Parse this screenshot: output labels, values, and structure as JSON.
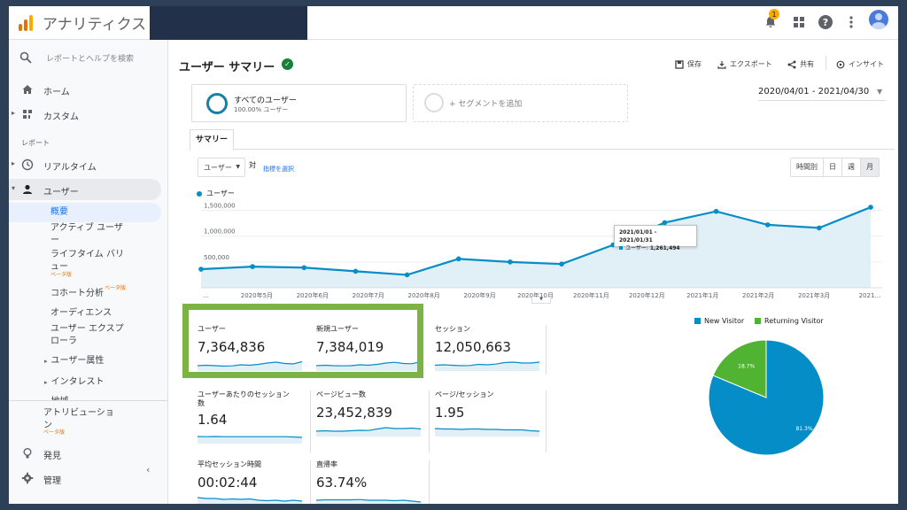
{
  "app": {
    "title": "アナリティクス",
    "notification_count": "1"
  },
  "sidebar": {
    "search_placeholder": "レポートとヘルプを検索",
    "home": "ホーム",
    "custom": "カスタム",
    "reports_section": "レポート",
    "realtime": "リアルタイム",
    "users": "ユーザー",
    "sub_overview": "概要",
    "sub_active_1": "アクティブ ユーザ",
    "sub_active_2": "ー",
    "sub_lifetime_1": "ライフタイム バリ",
    "sub_lifetime_2": "ュー",
    "sub_lifetime_beta": "ベータ版",
    "sub_cohort": "コホート分析",
    "sub_cohort_beta": "ベータ版",
    "sub_audience": "オーディエンス",
    "sub_explorer_1": "ユーザー エクスプ",
    "sub_explorer_2": "ローラ",
    "sub_attributes": "ユーザー属性",
    "sub_interests": "インタレスト",
    "sub_geo": "地域",
    "attribution": "アトリビューショ",
    "attribution_2": "ン",
    "attribution_beta": "ベータ版",
    "discover": "発見",
    "admin": "管理"
  },
  "header": {
    "page_title": "ユーザー サマリー",
    "save": "保存",
    "export": "エクスポート",
    "share": "共有",
    "insights": "インサイト"
  },
  "segments": {
    "all_users": "すべてのユーザー",
    "all_users_pct": "100.00% ユーザー",
    "add_segment": "+ セグメントを追加"
  },
  "date_range": "2020/04/01 - 2021/04/30",
  "tabs": {
    "summary": "サマリー"
  },
  "controls": {
    "metric": "ユーザー",
    "vs": "対",
    "pick_metric": "指標を選択",
    "period_hourly": "時間別",
    "period_day": "日",
    "period_week": "週",
    "period_month": "月"
  },
  "chart_data": {
    "type": "area",
    "series": [
      {
        "name": "ユーザー",
        "values": [
          360000,
          410000,
          390000,
          320000,
          250000,
          560000,
          500000,
          460000,
          830000,
          1261494,
          1480000,
          1220000,
          1160000,
          1560000
        ]
      }
    ],
    "y_ticks": [
      "500,000",
      "1,000,000",
      "1,500,000"
    ],
    "ylim": [
      0,
      1750000
    ],
    "x_tick_labels": [
      "…",
      "2020年5月",
      "2020年6月",
      "2020年7月",
      "2020年8月",
      "2020年9月",
      "2020年10月",
      "2020年11月",
      "2020年12月",
      "2021年1月",
      "2021年2月",
      "2021年3月",
      "2021…"
    ],
    "tooltip": {
      "period": "2021/01/01 - 2021/01/31",
      "label": "ユーザー:",
      "value": "1,261,494"
    },
    "color": "#058dc7",
    "fill": "#e1eff7"
  },
  "scorecards": [
    {
      "name": "ユーザー",
      "value": "7,364,836"
    },
    {
      "name": "新規ユーザー",
      "value": "7,384,019"
    },
    {
      "name": "セッション",
      "value": "12,050,663"
    },
    {
      "name": "ユーザーあたりのセッション",
      "name2": "数",
      "value": "1.64"
    },
    {
      "name": "ページビュー数",
      "value": "23,452,839"
    },
    {
      "name": "ページ/セッション",
      "value": "1.95"
    },
    {
      "name": "平均セッション時間",
      "value": "00:02:44"
    },
    {
      "name": "直帰率",
      "value": "63.74%"
    }
  ],
  "pie": {
    "legend_new": "New Visitor",
    "legend_returning": "Returning Visitor",
    "new_pct_label": "81.3%",
    "returning_pct_label": "18.7%",
    "new_value": 81.3,
    "returning_value": 18.7,
    "new_color": "#058dc7",
    "returning_color": "#50b432"
  },
  "highlight_color": "#7cb342"
}
